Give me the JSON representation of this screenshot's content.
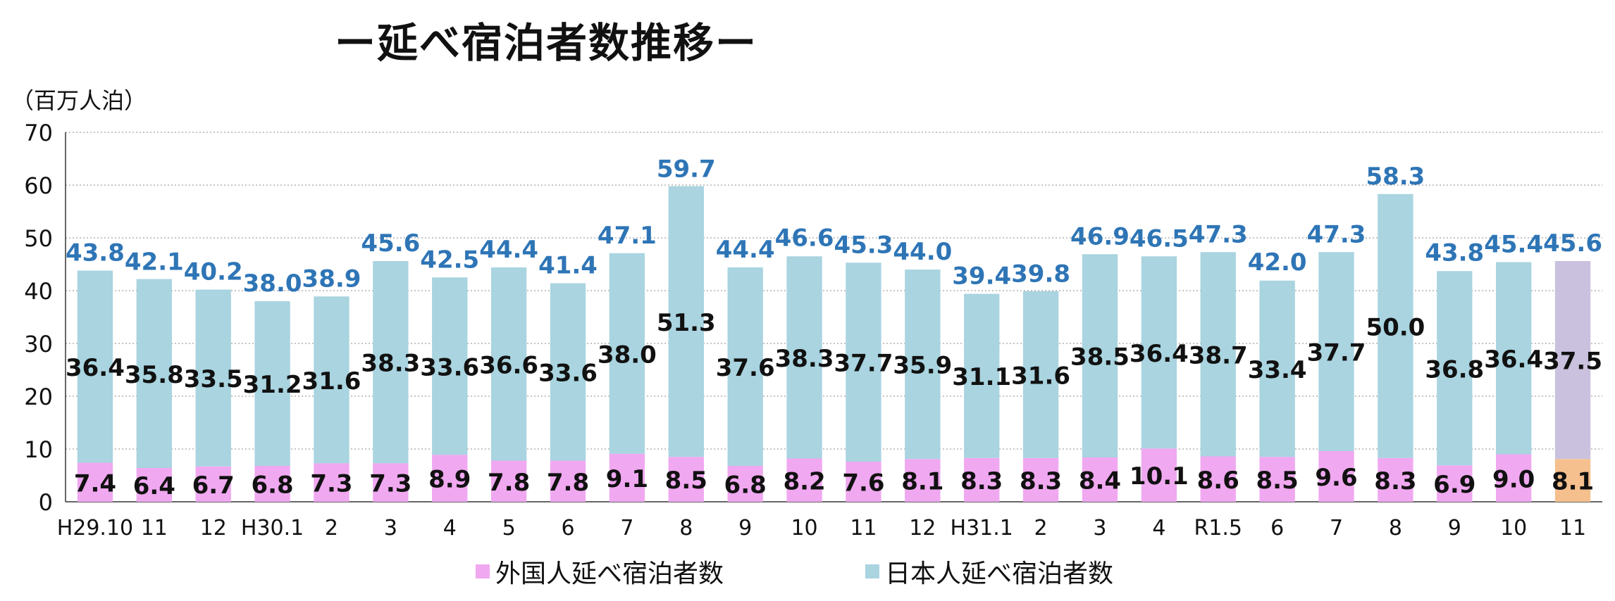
{
  "chart_data": {
    "type": "bar",
    "stacked": true,
    "title": "ー延べ宿泊者数推移ー",
    "unit_label": "（百万人泊）",
    "ylim": [
      0,
      70
    ],
    "yticks": [
      "0",
      "10",
      "20",
      "30",
      "40",
      "50",
      "60",
      "70"
    ],
    "grid": true,
    "legend_position": "bottom",
    "categories": [
      "H29.10",
      "11",
      "12",
      "H30.1",
      "2",
      "3",
      "4",
      "5",
      "6",
      "7",
      "8",
      "9",
      "10",
      "11",
      "12",
      "H31.1",
      "2",
      "3",
      "4",
      "R1.5",
      "6",
      "7",
      "8",
      "9",
      "10",
      "11"
    ],
    "series": [
      {
        "name": "外国人延べ宿泊者数",
        "color": "#f0a8f0",
        "values": [
          7.4,
          6.4,
          6.7,
          6.8,
          7.3,
          7.3,
          8.9,
          7.8,
          7.8,
          9.1,
          8.5,
          6.8,
          8.2,
          7.6,
          8.1,
          8.3,
          8.3,
          8.4,
          10.1,
          8.6,
          8.5,
          9.6,
          8.3,
          6.9,
          9.0,
          8.1
        ],
        "labels": [
          "7.4",
          "6.4",
          "6.7",
          "6.8",
          "7.3",
          "7.3",
          "8.9",
          "7.8",
          "7.8",
          "9.1",
          "8.5",
          "6.8",
          "8.2",
          "7.6",
          "8.1",
          "8.3",
          "8.3",
          "8.4",
          "10.1",
          "8.6",
          "8.5",
          "9.6",
          "8.3",
          "6.9",
          "9.0",
          "8.1"
        ]
      },
      {
        "name": "日本人延べ宿泊者数",
        "color": "#a9d4e0",
        "values": [
          36.4,
          35.8,
          33.5,
          31.2,
          31.6,
          38.3,
          33.6,
          36.6,
          33.6,
          38.0,
          51.3,
          37.6,
          38.3,
          37.7,
          35.9,
          31.1,
          31.6,
          38.5,
          36.4,
          38.7,
          33.4,
          37.7,
          50.0,
          36.8,
          36.4,
          37.5
        ],
        "labels": [
          "36.4",
          "35.8",
          "33.5",
          "31.2",
          "31.6",
          "38.3",
          "33.6",
          "36.6",
          "33.6",
          "38.0",
          "51.3",
          "37.6",
          "38.3",
          "37.7",
          "35.9",
          "31.1",
          "31.6",
          "38.5",
          "36.4",
          "38.7",
          "33.4",
          "37.7",
          "50.0",
          "36.8",
          "36.4",
          "37.5"
        ]
      }
    ],
    "totals": [
      43.8,
      42.1,
      40.2,
      38.0,
      38.9,
      45.6,
      42.5,
      44.4,
      41.4,
      47.1,
      59.7,
      44.4,
      46.6,
      45.3,
      44.0,
      39.4,
      39.8,
      46.9,
      46.5,
      47.3,
      42.0,
      47.3,
      58.3,
      43.8,
      45.4,
      45.6
    ],
    "total_labels": [
      "43.8",
      "42.1",
      "40.2",
      "38.0",
      "38.9",
      "45.6",
      "42.5",
      "44.4",
      "41.4",
      "47.1",
      "59.7",
      "44.4",
      "46.6",
      "45.3",
      "44.0",
      "39.4",
      "39.8",
      "46.9",
      "46.5",
      "47.3",
      "42.0",
      "47.3",
      "58.3",
      "43.8",
      "45.4",
      "45.6"
    ],
    "highlight_last": {
      "foreign_color": "#f5c08e",
      "japanese_color": "#c9c1dd"
    },
    "total_label_color": "#2e75b6"
  }
}
